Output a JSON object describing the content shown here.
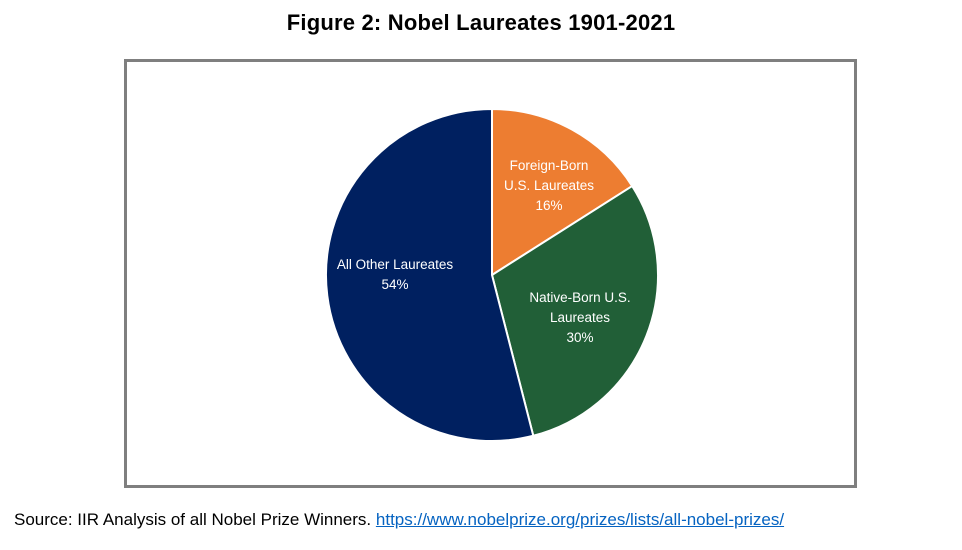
{
  "figure": {
    "title": "Figure 2: Nobel Laureates 1901-2021"
  },
  "source": {
    "prefix": "Source: IIR Analysis of all Nobel Prize Winners.",
    "link_text": "https://www.nobelprize.org/prizes/lists/all-nobel-prizes/"
  },
  "colors": {
    "foreign_born": "#ed7d31",
    "native_born": "#215f37",
    "all_other": "#002060",
    "slice_border": "#ffffff",
    "frame": "#7f7f7f",
    "link": "#0563c1"
  },
  "chart_data": {
    "type": "pie",
    "title": "Figure 2: Nobel Laureates 1901-2021",
    "slices": [
      {
        "key": "foreign",
        "label_lines": [
          "Foreign-Born",
          "U.S. Laureates"
        ],
        "value": 16,
        "value_label": "16%",
        "color": "#ed7d31"
      },
      {
        "key": "native",
        "label_lines": [
          "Native-Born U.S.",
          "Laureates"
        ],
        "value": 30,
        "value_label": "30%",
        "color": "#215f37"
      },
      {
        "key": "other",
        "label_lines": [
          "All Other Laureates"
        ],
        "value": 54,
        "value_label": "54%",
        "color": "#002060"
      }
    ],
    "start_angle": "12 o'clock",
    "direction": "clockwise",
    "legend": "none",
    "data_labels": "inside"
  }
}
